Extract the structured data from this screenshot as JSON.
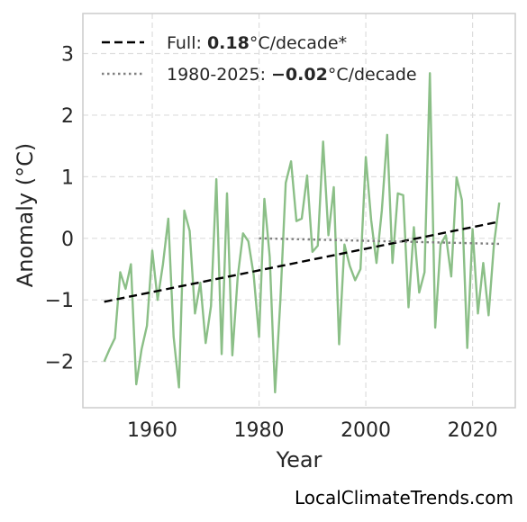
{
  "chart_data": {
    "type": "line",
    "xlabel": "Year",
    "ylabel": "Anomaly (°C)",
    "xlim": [
      1947,
      2028
    ],
    "ylim": [
      -2.75,
      3.65
    ],
    "x_ticks": [
      1960,
      1980,
      2000,
      2020
    ],
    "y_ticks": [
      -2,
      -1,
      0,
      1,
      2,
      3
    ],
    "y_tick_labels": [
      "−2",
      "−1",
      "0",
      "1",
      "2",
      "3"
    ],
    "grid": true,
    "legend_position": "top-left",
    "series": [
      {
        "style": "solid",
        "color": "#8bbf87",
        "x": [
          1951,
          1952,
          1953,
          1954,
          1955,
          1956,
          1957,
          1958,
          1959,
          1960,
          1961,
          1962,
          1963,
          1964,
          1965,
          1966,
          1967,
          1968,
          1969,
          1970,
          1971,
          1972,
          1973,
          1974,
          1975,
          1976,
          1977,
          1978,
          1979,
          1980,
          1981,
          1982,
          1983,
          1984,
          1985,
          1986,
          1987,
          1988,
          1989,
          1990,
          1991,
          1992,
          1993,
          1994,
          1995,
          1996,
          1997,
          1998,
          1999,
          2000,
          2001,
          2002,
          2003,
          2004,
          2005,
          2006,
          2007,
          2008,
          2009,
          2010,
          2011,
          2012,
          2013,
          2014,
          2015,
          2016,
          2017,
          2018,
          2019,
          2020,
          2021,
          2022,
          2023,
          2024,
          2025
        ],
        "y": [
          -2.0,
          -1.8,
          -1.62,
          -0.55,
          -0.82,
          -0.42,
          -2.37,
          -1.8,
          -1.42,
          -0.2,
          -1.0,
          -0.42,
          0.32,
          -1.6,
          -2.42,
          0.45,
          0.12,
          -1.22,
          -0.72,
          -1.7,
          -1.1,
          0.96,
          -1.88,
          0.73,
          -1.9,
          -0.63,
          0.08,
          -0.05,
          -0.6,
          -1.6,
          0.64,
          -0.3,
          -2.5,
          -1.0,
          0.9,
          1.25,
          0.28,
          0.32,
          1.02,
          -0.22,
          -0.12,
          1.57,
          0.05,
          0.83,
          -1.72,
          -0.1,
          -0.45,
          -0.68,
          -0.5,
          1.32,
          0.3,
          -0.4,
          0.45,
          1.68,
          -0.4,
          0.73,
          0.7,
          -1.12,
          0.18,
          -0.88,
          -0.55,
          2.68,
          -1.45,
          -0.1,
          0.05,
          -0.62,
          0.99,
          0.62,
          -1.78,
          0.15,
          -1.22,
          -0.4,
          -1.25,
          -0.1,
          0.58
        ]
      },
      {
        "style": "dashed",
        "color": "#000000",
        "x": [
          1951,
          2025
        ],
        "y": [
          -1.03,
          0.27
        ]
      },
      {
        "style": "dotted",
        "color": "#808080",
        "x": [
          1980,
          2025
        ],
        "y": [
          0.0,
          -0.09
        ]
      }
    ],
    "legend": [
      {
        "prefix": "Full: ",
        "value": "0.18",
        "suffix": "°C/decade*"
      },
      {
        "prefix": "1980-2025: ",
        "value": "−0.02",
        "suffix": "°C/decade"
      }
    ]
  },
  "watermark": "LocalClimateTrends.com"
}
